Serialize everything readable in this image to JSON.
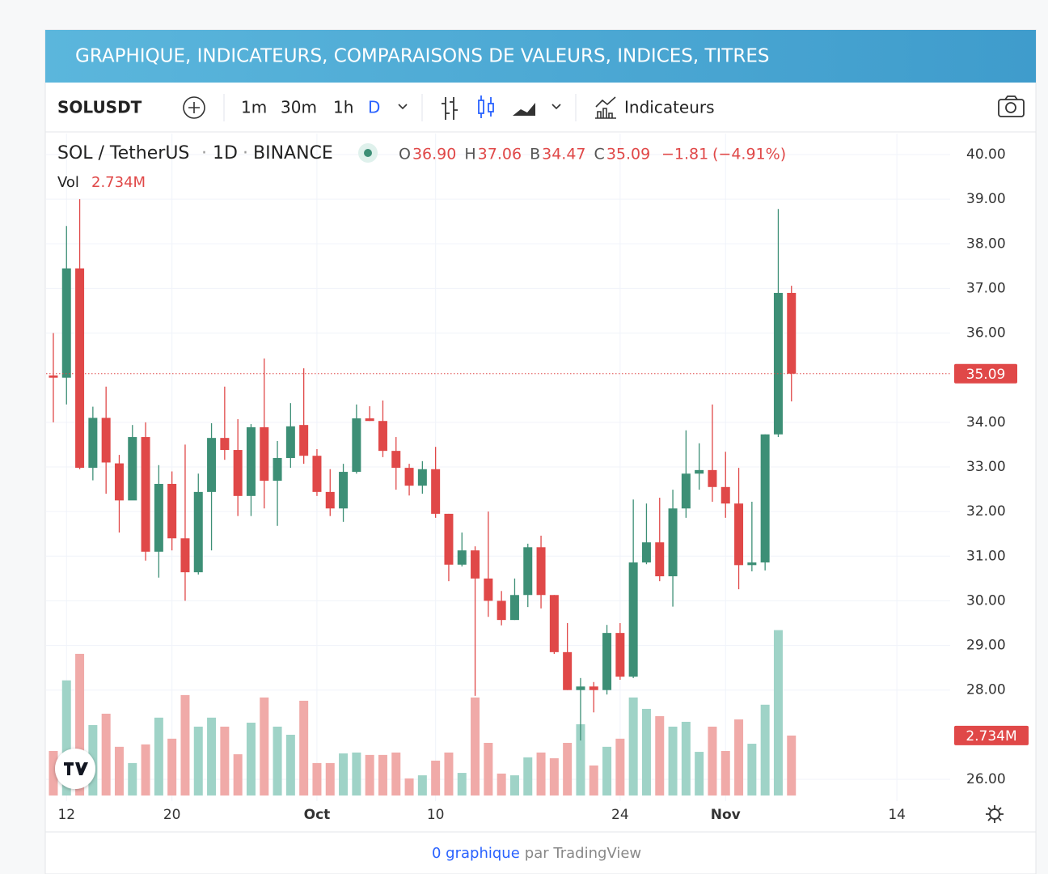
{
  "banner": "GRAPHIQUE, INDICATEURS, COMPARAISONS DE VALEURS, INDICES, TITRES",
  "toolbar": {
    "symbol": "SOLUSDT",
    "timeframes": [
      "1m",
      "30m",
      "1h",
      "D"
    ],
    "indicators": "Indicateurs"
  },
  "footer": {
    "link": "0 graphique",
    "rest": "par TradingView"
  },
  "chart_data": {
    "type": "candlestick",
    "pair": "SOL / TetherUS",
    "interval": "1D",
    "exchange": "BINANCE",
    "quote": [
      {
        "label": "O",
        "value": "36.90"
      },
      {
        "label": "H",
        "value": "37.06"
      },
      {
        "label": "B",
        "value": "34.47"
      },
      {
        "label": "C",
        "value": "35.09"
      }
    ],
    "change": "−1.81",
    "change_pct": "(−4.91%)",
    "vol_label": "Vol",
    "vol_value": "2.734M",
    "up_color": "#3d8f76",
    "down_color": "#e04848",
    "up_volume_color": "#9fd3c7",
    "down_volume_color": "#f0aaa8",
    "open": [
      35.05,
      35.0,
      37.45,
      32.98,
      34.1,
      33.08,
      32.25,
      33.67,
      31.1,
      32.62,
      31.4,
      30.64,
      32.44,
      33.65,
      33.38,
      32.35,
      33.89,
      32.69,
      33.2,
      33.94,
      33.25,
      32.44,
      32.07,
      32.89,
      34.09,
      34.03,
      33.36,
      32.98,
      32.58,
      32.95,
      31.95,
      30.81,
      31.13,
      30.5,
      30.0,
      29.57,
      30.13,
      31.2,
      30.13,
      28.85,
      28.0,
      28.08,
      28.0,
      29.28,
      28.3,
      30.86,
      31.31,
      30.55,
      32.07,
      32.85,
      32.93,
      32.55,
      32.18,
      30.8,
      30.86,
      33.73,
      36.9
    ],
    "high": [
      36.0,
      38.4,
      39.0,
      34.35,
      34.8,
      33.27,
      33.94,
      34.0,
      33.04,
      32.9,
      33.5,
      32.85,
      33.98,
      34.8,
      34.07,
      33.96,
      35.43,
      33.58,
      34.43,
      35.21,
      33.4,
      32.95,
      33.07,
      34.4,
      34.36,
      34.49,
      33.67,
      33.07,
      33.13,
      33.45,
      31.95,
      31.53,
      31.22,
      32.0,
      30.22,
      30.5,
      31.28,
      31.46,
      30.13,
      29.5,
      28.27,
      28.18,
      29.46,
      29.5,
      32.27,
      32.18,
      32.31,
      32.49,
      33.82,
      33.53,
      34.4,
      33.34,
      32.98,
      32.22,
      33.73,
      38.78,
      37.06
    ],
    "low": [
      34.0,
      34.4,
      32.95,
      32.7,
      32.4,
      31.53,
      32.27,
      30.9,
      30.52,
      31.13,
      30.0,
      30.59,
      31.13,
      33.16,
      31.9,
      31.9,
      32.07,
      31.68,
      32.98,
      33.07,
      32.35,
      31.9,
      31.77,
      32.85,
      34.03,
      33.22,
      32.49,
      32.36,
      32.4,
      31.86,
      30.44,
      30.77,
      27.87,
      29.64,
      29.45,
      29.57,
      29.86,
      29.83,
      28.81,
      28.0,
      26.87,
      27.5,
      27.9,
      28.23,
      28.27,
      30.82,
      30.44,
      29.87,
      31.86,
      32.49,
      32.22,
      31.86,
      30.26,
      30.66,
      30.68,
      33.67,
      34.47
    ],
    "close": [
      35.0,
      37.45,
      32.98,
      34.1,
      33.1,
      32.25,
      33.67,
      31.1,
      32.62,
      31.4,
      30.64,
      32.44,
      33.65,
      33.38,
      32.35,
      33.89,
      32.69,
      33.2,
      33.91,
      33.25,
      32.44,
      32.07,
      32.89,
      34.09,
      34.03,
      33.36,
      32.98,
      32.58,
      32.95,
      31.95,
      30.81,
      31.13,
      30.5,
      30.0,
      29.57,
      30.13,
      31.2,
      30.13,
      28.85,
      28.0,
      28.08,
      28.0,
      29.28,
      28.3,
      30.86,
      31.31,
      30.55,
      32.07,
      32.85,
      32.93,
      32.55,
      32.18,
      30.8,
      30.86,
      33.73,
      36.9,
      35.09
    ],
    "volume": [
      2.03,
      5.25,
      6.46,
      3.21,
      3.73,
      2.22,
      1.48,
      2.33,
      3.55,
      2.59,
      4.58,
      3.14,
      3.55,
      3.14,
      1.88,
      3.32,
      4.47,
      3.14,
      2.77,
      4.32,
      1.48,
      1.48,
      1.92,
      1.96,
      1.85,
      1.85,
      1.96,
      0.78,
      0.92,
      1.59,
      1.96,
      1.03,
      4.47,
      2.4,
      1.0,
      0.92,
      1.74,
      1.96,
      1.7,
      2.4,
      3.25,
      1.37,
      2.22,
      2.59,
      4.47,
      3.95,
      3.62,
      3.14,
      3.36,
      1.99,
      3.14,
      2.03,
      3.47,
      2.36,
      4.14,
      7.54,
      2.734
    ],
    "volume_ylim": [
      0,
      10
    ],
    "xlim": [
      -0.55,
      68.04
    ],
    "xticks": [
      {
        "value": 1,
        "label": "12"
      },
      {
        "value": 9,
        "label": "20"
      },
      {
        "value": 20,
        "label": "Oct"
      },
      {
        "value": 29,
        "label": "10"
      },
      {
        "value": 43,
        "label": "24"
      },
      {
        "value": 51,
        "label": "Nov"
      },
      {
        "value": 64,
        "label": "14"
      }
    ],
    "ylim": [
      26,
      40
    ],
    "yticks": [
      {
        "value": 40,
        "label": "40.00"
      },
      {
        "value": 39,
        "label": "39.00"
      },
      {
        "value": 38,
        "label": "38.00"
      },
      {
        "value": 37,
        "label": "37.00"
      },
      {
        "value": 36,
        "label": "36.00"
      },
      {
        "value": 34,
        "label": "34.00"
      },
      {
        "value": 33,
        "label": "33.00"
      },
      {
        "value": 32,
        "label": "32.00"
      },
      {
        "value": 31,
        "label": "31.00"
      },
      {
        "value": 30,
        "label": "30.00"
      },
      {
        "value": 29,
        "label": "29.00"
      },
      {
        "value": 28,
        "label": "28.00"
      },
      {
        "value": 26,
        "label": "26.00"
      }
    ],
    "grid": true
  }
}
